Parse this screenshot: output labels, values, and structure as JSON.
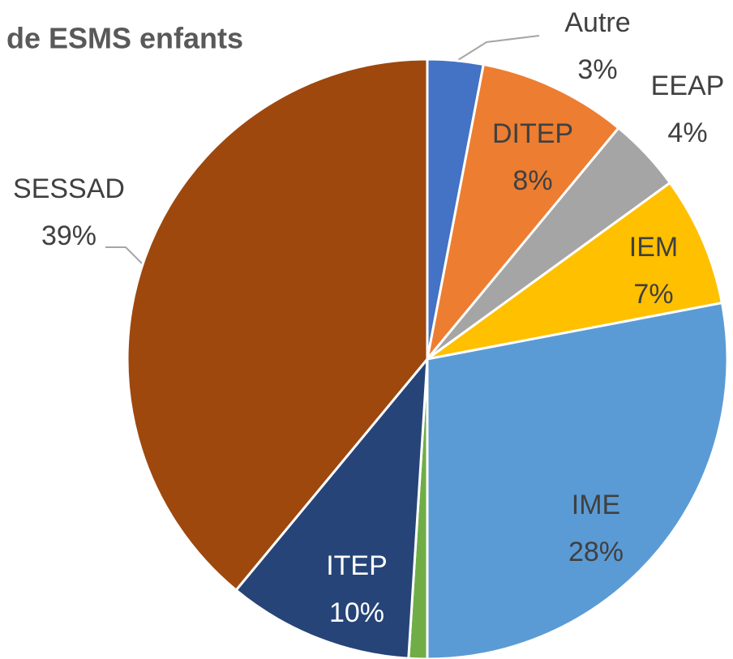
{
  "chart_data": {
    "type": "pie",
    "title": "de ESMS enfants",
    "categories": [
      "Autre",
      "DITEP",
      "EEAP",
      "IEM",
      "IME",
      null,
      "ITEP",
      "SESSAD"
    ],
    "values": [
      3,
      8,
      4,
      7,
      28,
      1,
      10,
      39
    ],
    "value_labels": [
      "3%",
      "8%",
      "4%",
      "7%",
      "28%",
      null,
      "10%",
      "39%"
    ],
    "colors": [
      "#4472c4",
      "#ed7d31",
      "#a5a5a5",
      "#ffc000",
      "#5b9bd5",
      "#70ad47",
      "#264478",
      "#9e480e"
    ]
  }
}
